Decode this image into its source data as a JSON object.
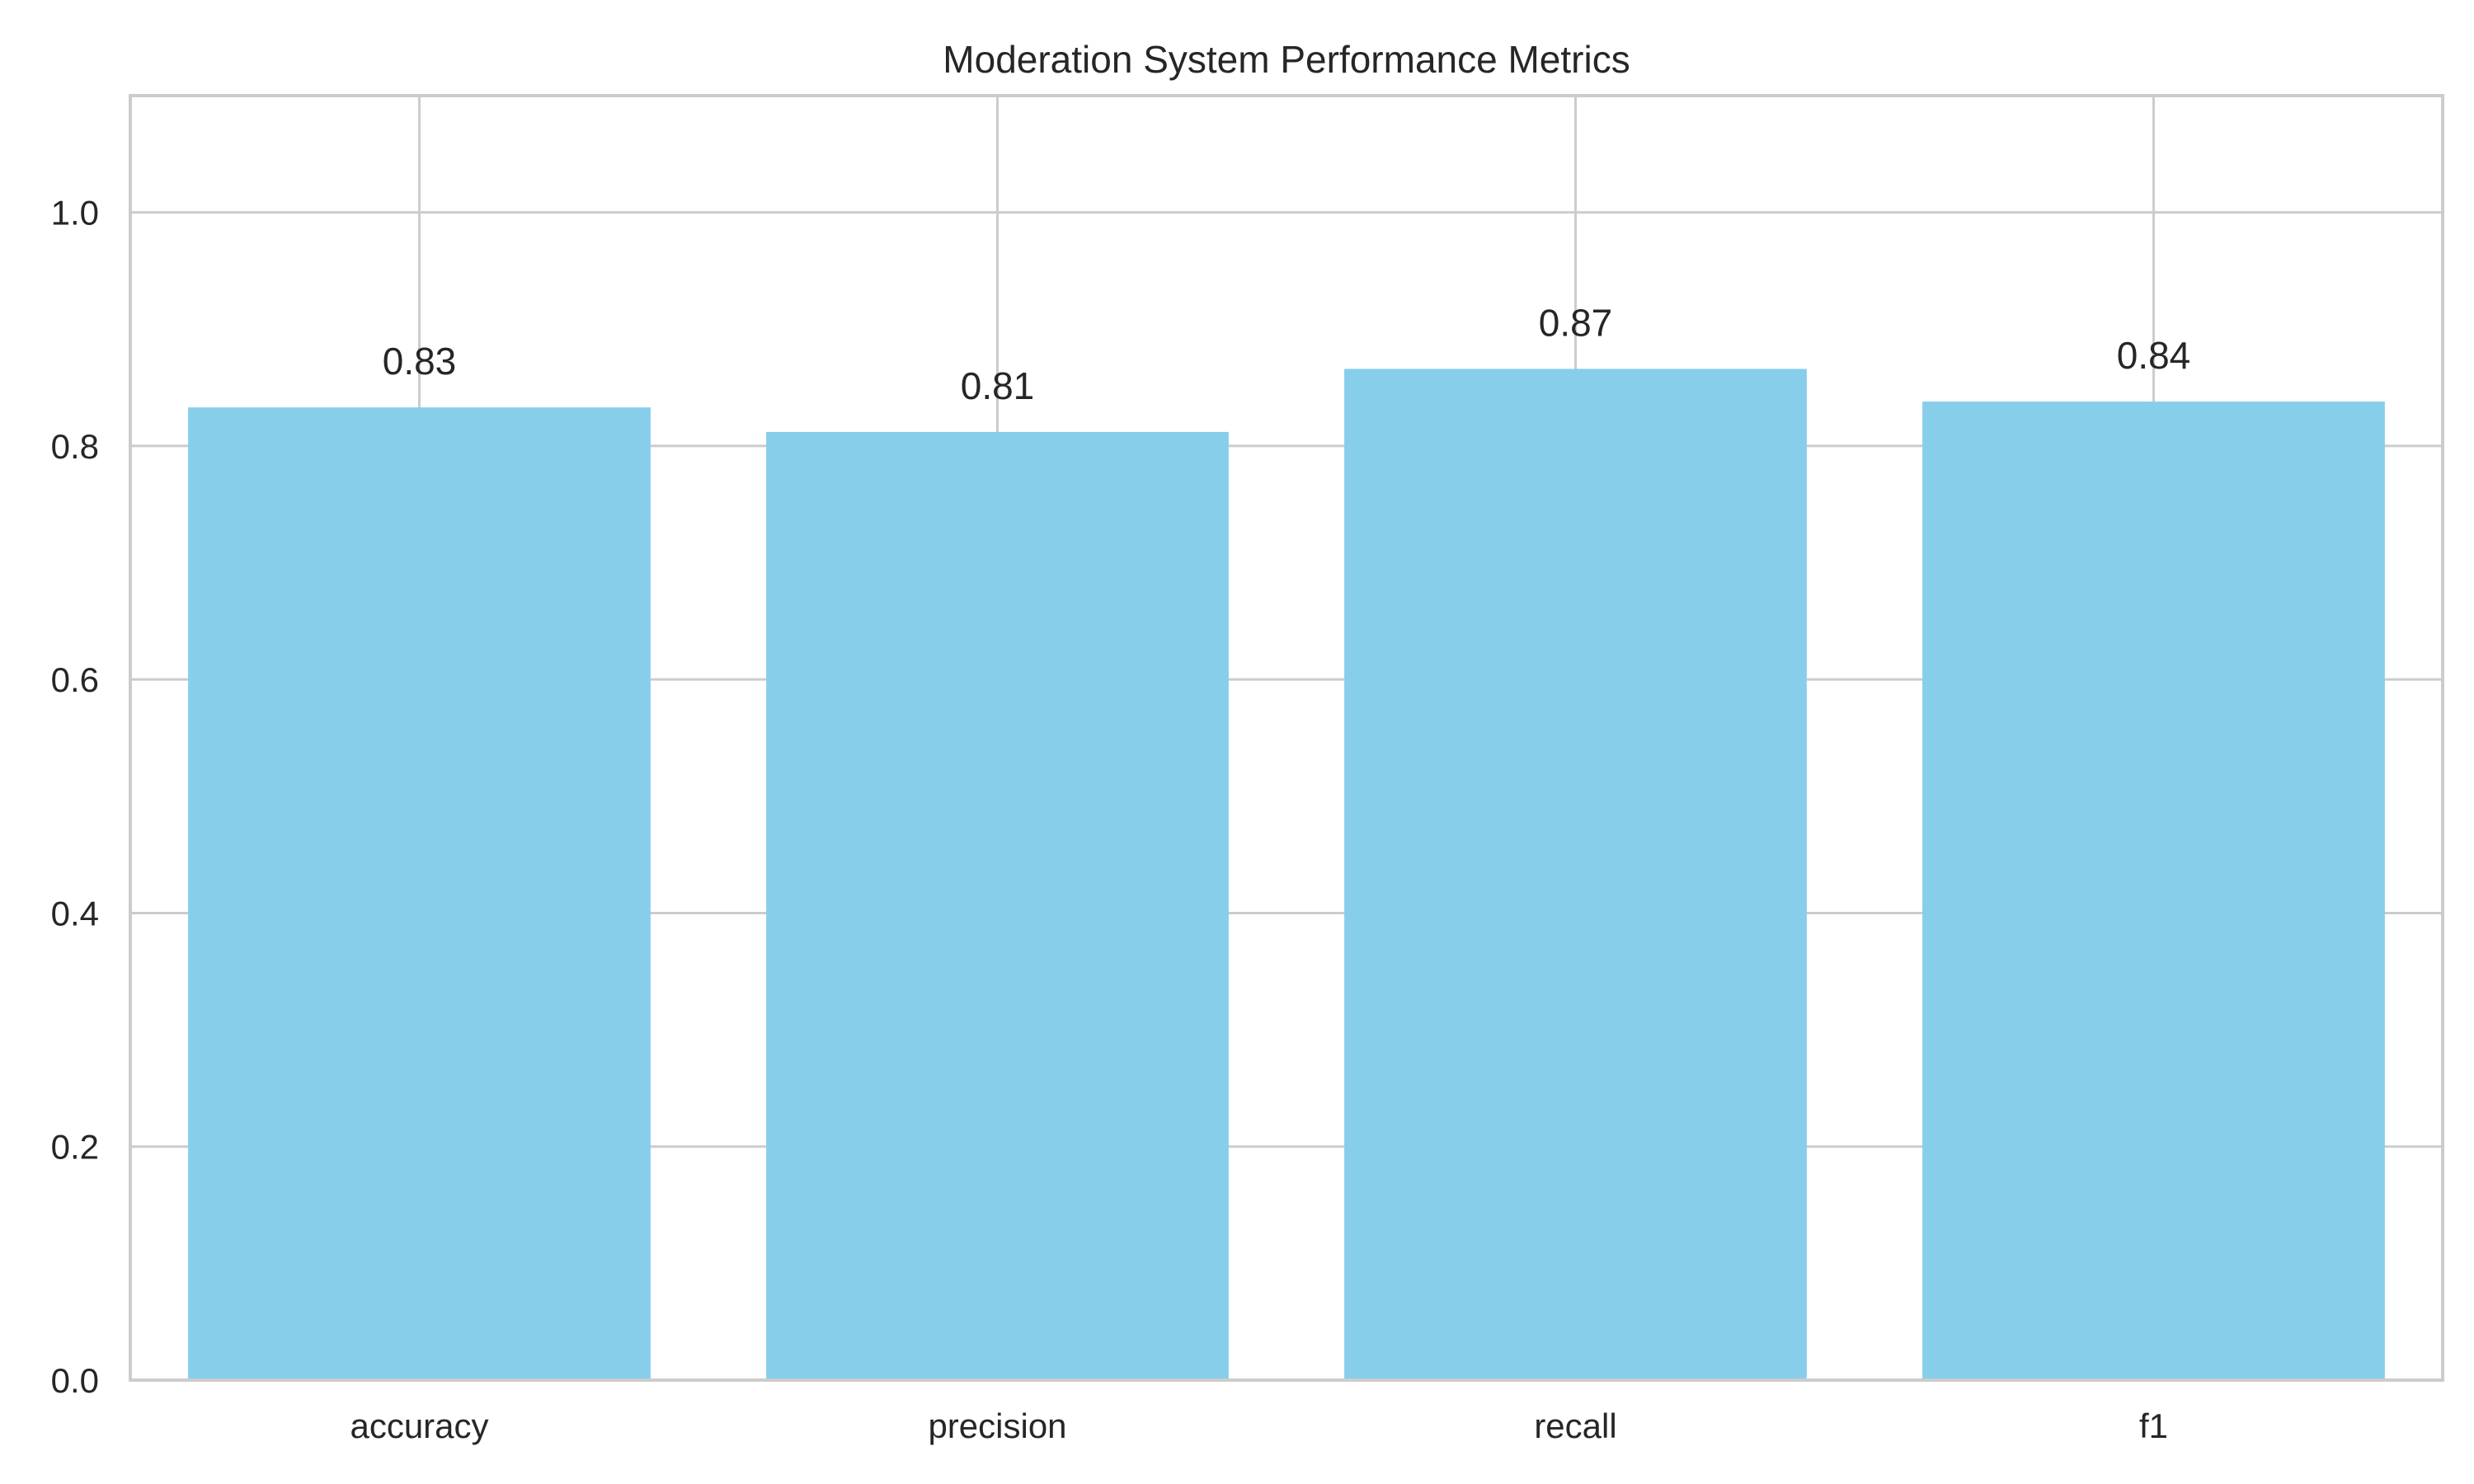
{
  "chart_data": {
    "type": "bar",
    "title": "Moderation System Performance Metrics",
    "xlabel": "",
    "ylabel": "",
    "categories": [
      "accuracy",
      "precision",
      "recall",
      "f1"
    ],
    "values": [
      0.833,
      0.812,
      0.866,
      0.838
    ],
    "value_labels": [
      "0.83",
      "0.81",
      "0.87",
      "0.84"
    ],
    "ylim": [
      0,
      1.1
    ],
    "yticks": [
      0.0,
      0.2,
      0.4,
      0.6,
      0.8,
      1.0
    ],
    "ytick_labels": [
      "0.0",
      "0.2",
      "0.4",
      "0.6",
      "0.8",
      "1.0"
    ],
    "grid": true,
    "legend": "none",
    "colors": {
      "bar": "#87ceeb",
      "grid": "#cccccc",
      "spine": "#cccccc",
      "text": "#262626",
      "background": "#ffffff"
    }
  }
}
